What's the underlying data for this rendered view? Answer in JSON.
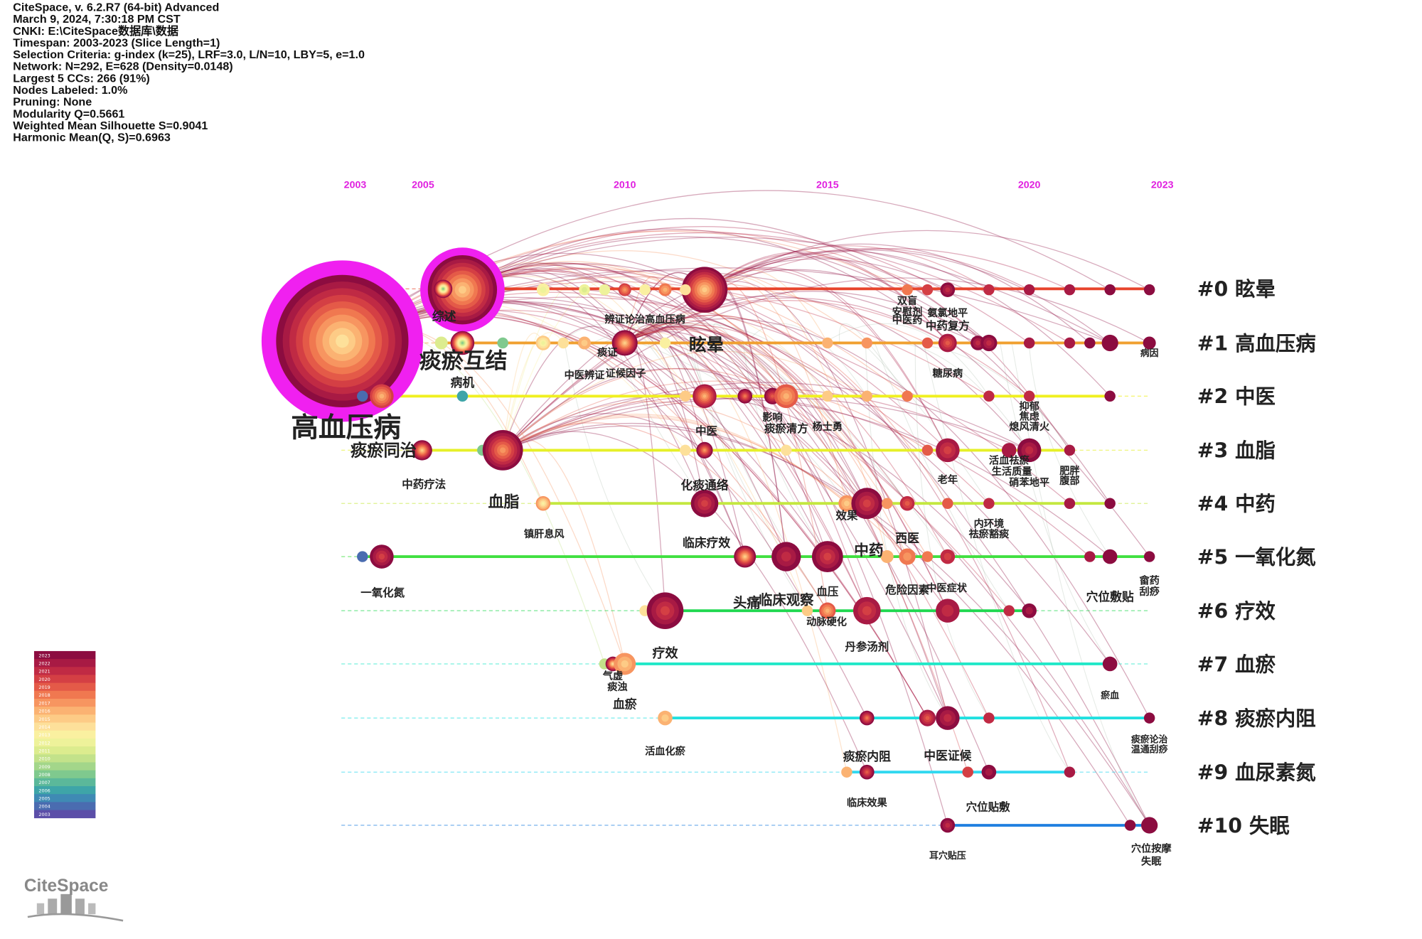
{
  "header": {
    "lines": [
      "CiteSpace, v. 6.2.R7 (64-bit) Advanced",
      "March 9, 2024, 7:30:18 PM CST",
      "CNKI: E:\\CiteSpace数据库\\数据",
      "Timespan: 2003-2023 (Slice Length=1)",
      "Selection Criteria: g-index (k=25), LRF=3.0, L/N=10, LBY=5, e=1.0",
      "Network: N=292, E=628 (Density=0.0148)",
      "Largest 5 CCs: 266 (91%)",
      "Nodes Labeled: 1.0%",
      "Pruning: None",
      "Modularity Q=0.5661",
      "Weighted Mean Silhouette S=0.9041",
      "Harmonic Mean(Q, S)=0.6963"
    ]
  },
  "timeline": {
    "years": [
      "2003",
      "2005",
      "2010",
      "2015",
      "2020",
      "2023"
    ]
  },
  "clusters": [
    "#0 眩晕",
    "#1 高血压病",
    "#2 中医",
    "#3 血脂",
    "#4 中药",
    "#5 一氧化氮",
    "#6 疗效",
    "#7 血瘀",
    "#8 痰瘀内阻",
    "#9 血尿素氮",
    "#10 失眠"
  ],
  "node_labels": [
    "综述",
    "痰瘀互结",
    "病机",
    "高血压病",
    "痰瘀同治",
    "中药疗法",
    "血脂",
    "镇肝息风",
    "一氧化氮",
    "辨证论治高血压病",
    "痰证",
    "证候因子",
    "中医辨证",
    "眩晕",
    "中医",
    "化痰通络",
    "临床疗效",
    "影响",
    "痰瘀清方",
    "杨士勇",
    "效果",
    "头痛",
    "临床观察",
    "血压",
    "动脉硬化",
    "丹参汤剂",
    "危险因素",
    "中医症状",
    "西医",
    "中药",
    "疗效",
    "气虚",
    "痰浊",
    "血瘀",
    "活血化瘀",
    "痰瘀内阻",
    "中医证候",
    "临床效果",
    "穴位贴敷",
    "耳穴贴压",
    "双盲",
    "安慰剂",
    "中医药",
    "氨氯地平",
    "中药复方",
    "糖尿病",
    "抑郁",
    "焦虑",
    "熄风清火",
    "活血祛瘀",
    "生活质量",
    "硝苯地平",
    "老年",
    "肥胖",
    "腹部",
    "内环境",
    "祛瘀豁痰",
    "穴位敷贴",
    "瘀血",
    "痰瘀论治",
    "温通刮痧",
    "畲药",
    "刮痧",
    "穴位按摩",
    "失眠",
    "病因"
  ],
  "legend": {
    "years": [
      "2023",
      "2022",
      "2021",
      "2020",
      "2019",
      "2018",
      "2017",
      "2016",
      "2015",
      "2014",
      "2013",
      "2012",
      "2011",
      "2010",
      "2009",
      "2008",
      "2007",
      "2006",
      "2005",
      "2004",
      "2003"
    ]
  },
  "logo": "CiteSpace"
}
